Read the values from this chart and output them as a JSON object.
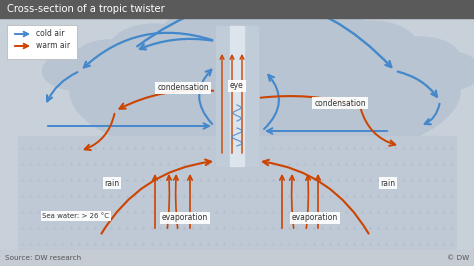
{
  "title": "Cross-section of a tropic twister",
  "title_bg": "#5a5a5a",
  "title_color": "#ffffff",
  "main_bg": "#d2d8df",
  "diagram_bg": "#c8d0da",
  "cloud_color": "#b8c4d2",
  "ocean_color": "#bfc8d5",
  "ocean_dot_color": "#a8b4c4",
  "eye_wall_color": "#c0ccd8",
  "eye_center_color": "#dce4ee",
  "cold_air_color": "#4488cc",
  "warm_air_color": "#cc4400",
  "label_bg": "#ffffff",
  "label_color": "#333333",
  "footer_bg": "#c5ccd4",
  "footer_color": "#555555",
  "source_text": "Source: DW research",
  "copyright_text": "© DW",
  "legend_cold": "cold air",
  "legend_warm": "warm air",
  "labels": {
    "condensation_left": "condensation",
    "condensation_right": "condensation",
    "eye": "eye",
    "rain_left": "rain",
    "rain_right": "rain",
    "evaporation_left": "evaporation",
    "evaporation_right": "evaporation",
    "sea_water": "Sea water: > 26 °C"
  }
}
